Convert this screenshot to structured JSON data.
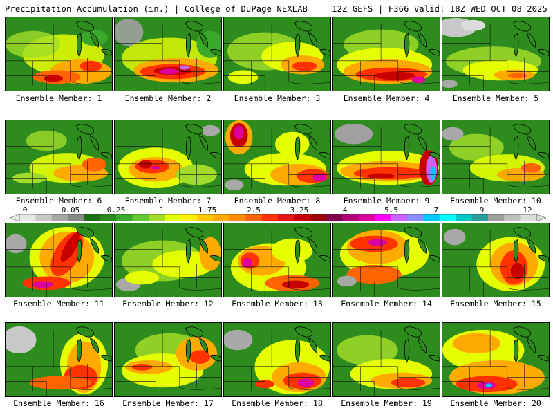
{
  "header": {
    "title": "Precipitation Accumulation (in.) | College of DuPage NEXLAB",
    "run_info": "12Z GEFS | F366 Valid: 18Z WED OCT 08 2025"
  },
  "colorbar": {
    "tick_labels": [
      "0",
      "0.05",
      "0.25",
      "1",
      "1.75",
      "2.5",
      "3.25",
      "4",
      "5.5",
      "7",
      "9",
      "12"
    ],
    "colors": [
      "#e8e8e8",
      "#c8c8c8",
      "#a8a8a8",
      "#888888",
      "#1e6e14",
      "#2a8a1e",
      "#3aa82a",
      "#64c832",
      "#a0dc28",
      "#e6ff00",
      "#fff000",
      "#ffc800",
      "#ffaa00",
      "#ff8c00",
      "#ff6400",
      "#ff3200",
      "#e61414",
      "#c80000",
      "#a00000",
      "#82004b",
      "#b40078",
      "#dc00a0",
      "#ff00ff",
      "#c864ff",
      "#8c8cff",
      "#00c8ff",
      "#00ffff",
      "#00c8c8",
      "#28a0a0",
      "#a0a0a0",
      "#bebebe",
      "#dcdcdc"
    ]
  },
  "members": [
    {
      "label": "Ensemble Member: 1"
    },
    {
      "label": "Ensemble Member: 2"
    },
    {
      "label": "Ensemble Member: 3"
    },
    {
      "label": "Ensemble Member: 4"
    },
    {
      "label": "Ensemble Member: 5"
    },
    {
      "label": "Ensemble Member: 6"
    },
    {
      "label": "Ensemble Member: 7"
    },
    {
      "label": "Ensemble Member: 8"
    },
    {
      "label": "Ensemble Member: 9"
    },
    {
      "label": "Ensemble Member: 10"
    },
    {
      "label": "Ensemble Member: 11"
    },
    {
      "label": "Ensemble Member: 12"
    },
    {
      "label": "Ensemble Member: 13"
    },
    {
      "label": "Ensemble Member: 14"
    },
    {
      "label": "Ensemble Member: 15"
    },
    {
      "label": "Ensemble Member: 16"
    },
    {
      "label": "Ensemble Member: 17"
    },
    {
      "label": "Ensemble Member: 18"
    },
    {
      "label": "Ensemble Member: 19"
    },
    {
      "label": "Ensemble Member: 20"
    }
  ]
}
